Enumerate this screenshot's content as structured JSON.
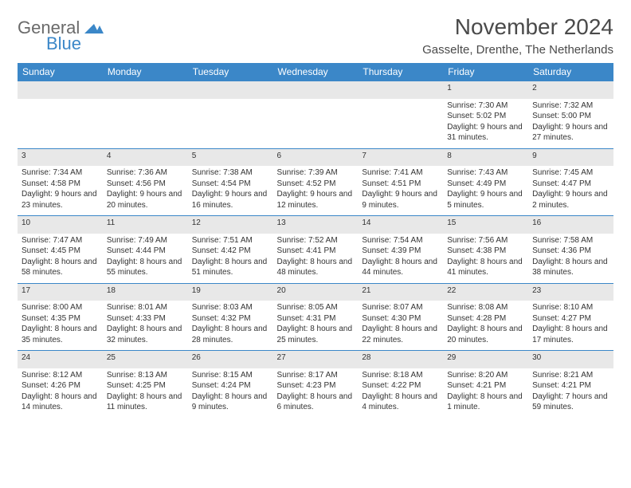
{
  "brand": {
    "general": "General",
    "blue": "Blue",
    "mark_color": "#3b87c8"
  },
  "title": "November 2024",
  "location": "Gasselte, Drenthe, The Netherlands",
  "colors": {
    "header_bg": "#3b87c8",
    "header_fg": "#ffffff",
    "daynum_bg": "#e8e8e8",
    "row_border": "#3b87c8",
    "text": "#333333",
    "page_bg": "#ffffff"
  },
  "day_headers": [
    "Sunday",
    "Monday",
    "Tuesday",
    "Wednesday",
    "Thursday",
    "Friday",
    "Saturday"
  ],
  "weeks": [
    [
      {
        "n": "",
        "t": ""
      },
      {
        "n": "",
        "t": ""
      },
      {
        "n": "",
        "t": ""
      },
      {
        "n": "",
        "t": ""
      },
      {
        "n": "",
        "t": ""
      },
      {
        "n": "1",
        "t": "Sunrise: 7:30 AM\nSunset: 5:02 PM\nDaylight: 9 hours and 31 minutes."
      },
      {
        "n": "2",
        "t": "Sunrise: 7:32 AM\nSunset: 5:00 PM\nDaylight: 9 hours and 27 minutes."
      }
    ],
    [
      {
        "n": "3",
        "t": "Sunrise: 7:34 AM\nSunset: 4:58 PM\nDaylight: 9 hours and 23 minutes."
      },
      {
        "n": "4",
        "t": "Sunrise: 7:36 AM\nSunset: 4:56 PM\nDaylight: 9 hours and 20 minutes."
      },
      {
        "n": "5",
        "t": "Sunrise: 7:38 AM\nSunset: 4:54 PM\nDaylight: 9 hours and 16 minutes."
      },
      {
        "n": "6",
        "t": "Sunrise: 7:39 AM\nSunset: 4:52 PM\nDaylight: 9 hours and 12 minutes."
      },
      {
        "n": "7",
        "t": "Sunrise: 7:41 AM\nSunset: 4:51 PM\nDaylight: 9 hours and 9 minutes."
      },
      {
        "n": "8",
        "t": "Sunrise: 7:43 AM\nSunset: 4:49 PM\nDaylight: 9 hours and 5 minutes."
      },
      {
        "n": "9",
        "t": "Sunrise: 7:45 AM\nSunset: 4:47 PM\nDaylight: 9 hours and 2 minutes."
      }
    ],
    [
      {
        "n": "10",
        "t": "Sunrise: 7:47 AM\nSunset: 4:45 PM\nDaylight: 8 hours and 58 minutes."
      },
      {
        "n": "11",
        "t": "Sunrise: 7:49 AM\nSunset: 4:44 PM\nDaylight: 8 hours and 55 minutes."
      },
      {
        "n": "12",
        "t": "Sunrise: 7:51 AM\nSunset: 4:42 PM\nDaylight: 8 hours and 51 minutes."
      },
      {
        "n": "13",
        "t": "Sunrise: 7:52 AM\nSunset: 4:41 PM\nDaylight: 8 hours and 48 minutes."
      },
      {
        "n": "14",
        "t": "Sunrise: 7:54 AM\nSunset: 4:39 PM\nDaylight: 8 hours and 44 minutes."
      },
      {
        "n": "15",
        "t": "Sunrise: 7:56 AM\nSunset: 4:38 PM\nDaylight: 8 hours and 41 minutes."
      },
      {
        "n": "16",
        "t": "Sunrise: 7:58 AM\nSunset: 4:36 PM\nDaylight: 8 hours and 38 minutes."
      }
    ],
    [
      {
        "n": "17",
        "t": "Sunrise: 8:00 AM\nSunset: 4:35 PM\nDaylight: 8 hours and 35 minutes."
      },
      {
        "n": "18",
        "t": "Sunrise: 8:01 AM\nSunset: 4:33 PM\nDaylight: 8 hours and 32 minutes."
      },
      {
        "n": "19",
        "t": "Sunrise: 8:03 AM\nSunset: 4:32 PM\nDaylight: 8 hours and 28 minutes."
      },
      {
        "n": "20",
        "t": "Sunrise: 8:05 AM\nSunset: 4:31 PM\nDaylight: 8 hours and 25 minutes."
      },
      {
        "n": "21",
        "t": "Sunrise: 8:07 AM\nSunset: 4:30 PM\nDaylight: 8 hours and 22 minutes."
      },
      {
        "n": "22",
        "t": "Sunrise: 8:08 AM\nSunset: 4:28 PM\nDaylight: 8 hours and 20 minutes."
      },
      {
        "n": "23",
        "t": "Sunrise: 8:10 AM\nSunset: 4:27 PM\nDaylight: 8 hours and 17 minutes."
      }
    ],
    [
      {
        "n": "24",
        "t": "Sunrise: 8:12 AM\nSunset: 4:26 PM\nDaylight: 8 hours and 14 minutes."
      },
      {
        "n": "25",
        "t": "Sunrise: 8:13 AM\nSunset: 4:25 PM\nDaylight: 8 hours and 11 minutes."
      },
      {
        "n": "26",
        "t": "Sunrise: 8:15 AM\nSunset: 4:24 PM\nDaylight: 8 hours and 9 minutes."
      },
      {
        "n": "27",
        "t": "Sunrise: 8:17 AM\nSunset: 4:23 PM\nDaylight: 8 hours and 6 minutes."
      },
      {
        "n": "28",
        "t": "Sunrise: 8:18 AM\nSunset: 4:22 PM\nDaylight: 8 hours and 4 minutes."
      },
      {
        "n": "29",
        "t": "Sunrise: 8:20 AM\nSunset: 4:21 PM\nDaylight: 8 hours and 1 minute."
      },
      {
        "n": "30",
        "t": "Sunrise: 8:21 AM\nSunset: 4:21 PM\nDaylight: 7 hours and 59 minutes."
      }
    ]
  ]
}
